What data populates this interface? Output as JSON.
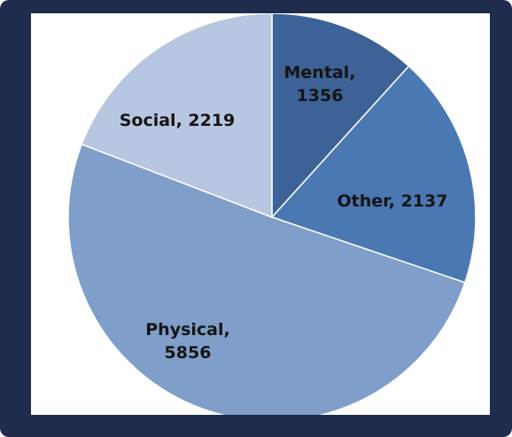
{
  "chart_data": {
    "type": "pie",
    "values": [
      1356,
      2137,
      5856,
      2219
    ],
    "value_labels": [
      "Mental, 1356",
      "Other, 2137",
      "Physical, 5856",
      "Social, 2219"
    ],
    "colors": [
      "#3d6297",
      "#4a78b3",
      "#7f9ec9",
      "#b7c6e1"
    ]
  }
}
